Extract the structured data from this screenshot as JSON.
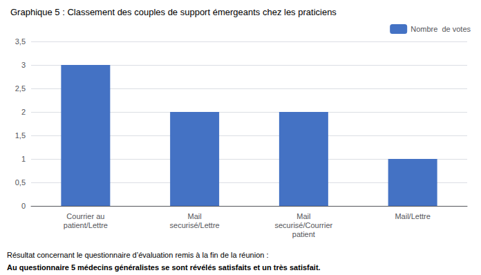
{
  "chart_data": {
    "type": "bar",
    "title": "Graphique 5 : Classement des couples de support émergeants chez les praticiens",
    "categories": [
      "Courrier au\npatient/Lettre",
      "Mail\nsecurisé/Lettre",
      "Mail\nsecurisé/Courrier\npatient",
      "Mail/Lettre"
    ],
    "series": [
      {
        "name": "Nombre  de votes",
        "color": "#4472C4",
        "values": [
          3,
          2,
          2,
          1
        ]
      }
    ],
    "ylim": [
      0,
      3.5
    ],
    "yticks": [
      0,
      {
        "value": 0.5,
        "label": "0,5"
      },
      1,
      {
        "value": 1.5,
        "label": "1,5"
      },
      2,
      {
        "value": 2.5,
        "label": "2,5"
      },
      3,
      {
        "value": 3.5,
        "label": "3,5"
      }
    ],
    "grid": true,
    "legend": "upper right",
    "annotations": [
      "Résultat concernant le questionnaire d’évaluation remis à la fin de la réunion :",
      "Au questionnaire 5 médecins généralistes se sont révélés satisfaits et un très satisfait."
    ]
  }
}
